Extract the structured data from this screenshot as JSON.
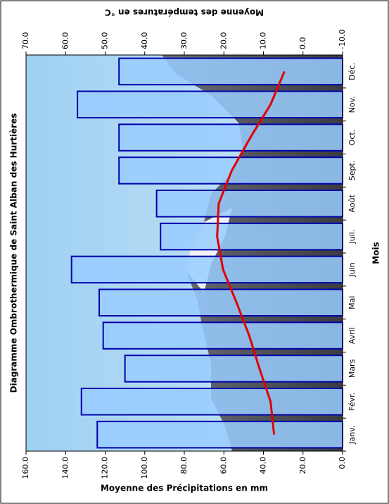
{
  "chart_data": {
    "type": "bar-line",
    "title": "Diagramme Ombrothermique de Saint Alban des Hurtières",
    "x_label": "Mois",
    "y_label": "Moyenne des Précipitations en mm",
    "y2_label": "Moyenne des températures en °C",
    "categories": [
      "Janv.",
      "Févr.",
      "Mars",
      "Avril",
      "Mai",
      "Juin",
      "Juil.",
      "Août",
      "Sept.",
      "Oct.",
      "Nov.",
      "Déc."
    ],
    "series": [
      {
        "type": "bar",
        "color": "#99ccff",
        "values": [
          124,
          132,
          110,
          121,
          123,
          137,
          92,
          94,
          113,
          113,
          134,
          113
        ]
      },
      {
        "type": "line",
        "axis": "y2",
        "color": "#e00000",
        "values": [
          7.3,
          8.2,
          11,
          13.6,
          16.8,
          20.2,
          21.7,
          21.3,
          18,
          13.3,
          8.2,
          4.7
        ]
      }
    ],
    "ylim": [
      0,
      160
    ],
    "yticks": [
      {
        "value": 0,
        "label": "0.0"
      },
      {
        "value": 20,
        "label": "20.0"
      },
      {
        "value": 40,
        "label": "40.0"
      },
      {
        "value": 60,
        "label": "60.0"
      },
      {
        "value": 80,
        "label": "80.0"
      },
      {
        "value": 100,
        "label": "100.0"
      },
      {
        "value": 120,
        "label": "120.0"
      },
      {
        "value": 140,
        "label": "140.0"
      },
      {
        "value": 160,
        "label": "160.0"
      }
    ],
    "y2lim": [
      -10,
      70
    ],
    "y2ticks": [
      {
        "value": -10,
        "label": "-10.0"
      },
      {
        "value": 0,
        "label": "0.0"
      },
      {
        "value": 10,
        "label": "10.0"
      },
      {
        "value": 20,
        "label": "20.0"
      },
      {
        "value": 30,
        "label": "30.0"
      },
      {
        "value": 40,
        "label": "40.0"
      },
      {
        "value": 50,
        "label": "50.0"
      },
      {
        "value": 60,
        "label": "60.0"
      },
      {
        "value": 70,
        "label": "70.0"
      }
    ],
    "grid": false
  }
}
